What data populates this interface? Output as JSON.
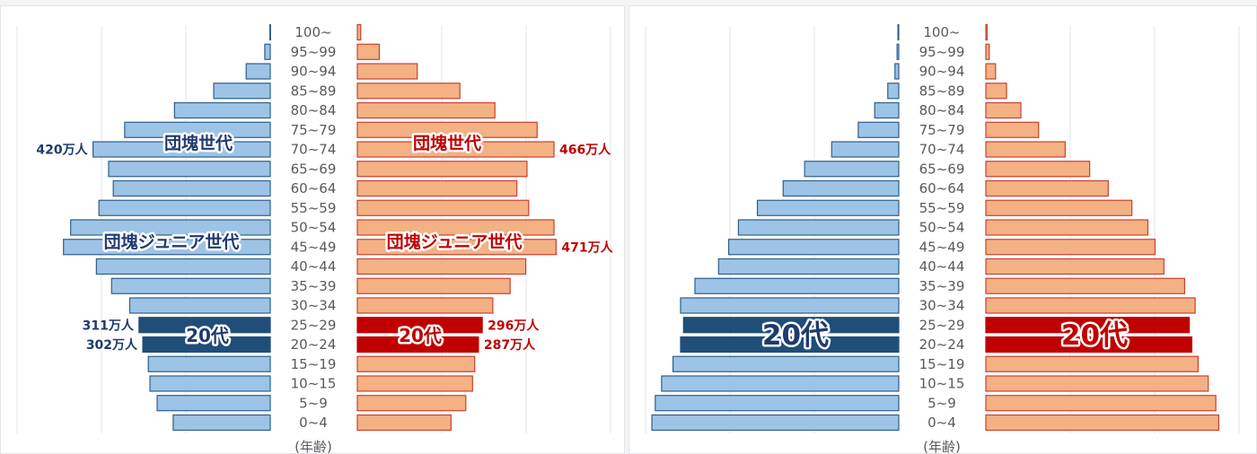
{
  "colors": {
    "male_fill": "#9dc3e6",
    "male_stroke": "#2e5f8a",
    "male_highlight": "#1f4e79",
    "male_text": "#1f3a6e",
    "female_fill": "#f4b183",
    "female_stroke": "#c8412f",
    "female_highlight": "#c00000",
    "female_text": "#c00000",
    "grid": "#e3e6ea",
    "category_text": "#595959"
  },
  "chart_data": [
    {
      "type": "bar",
      "subtype": "population-pyramid",
      "categories": [
        "100~",
        "95~99",
        "90~94",
        "85~89",
        "80~84",
        "75~79",
        "70~74",
        "65~69",
        "60~64",
        "55~59",
        "50~54",
        "45~49",
        "40~44",
        "35~39",
        "30~34",
        "25~29",
        "20~24",
        "15~19",
        "10~15",
        "5~9",
        "0~4"
      ],
      "series": [
        {
          "side": "left",
          "values": [
            1,
            13,
            57,
            134,
            227,
            345,
            420,
            383,
            372,
            406,
            473,
            490,
            412,
            376,
            333,
            311,
            302,
            289,
            285,
            268,
            230
          ]
        },
        {
          "side": "right",
          "values": [
            8,
            52,
            142,
            243,
            326,
            426,
            466,
            402,
            378,
            406,
            466,
            471,
            399,
            362,
            321,
            296,
            287,
            278,
            273,
            257,
            222
          ]
        }
      ],
      "unit": "万人",
      "xlim": [
        0,
        600
      ],
      "grid": true,
      "highlight_categories": [
        "25~29",
        "20~24"
      ],
      "axis_label": "(年齢)",
      "annotations": [
        {
          "text": "団塊世代",
          "side": "left"
        },
        {
          "text": "団塊世代",
          "side": "right"
        },
        {
          "text": "団塊ジュニア世代",
          "side": "left"
        },
        {
          "text": "団塊ジュニア世代",
          "side": "right"
        },
        {
          "text": "20代",
          "side": "left"
        },
        {
          "text": "20代",
          "side": "right"
        }
      ],
      "value_labels": [
        {
          "text": "420万人",
          "side": "left",
          "category": "70~74"
        },
        {
          "text": "466万人",
          "side": "right",
          "category": "70~74"
        },
        {
          "text": "471万人",
          "side": "right",
          "category": "45~49"
        },
        {
          "text": "311万人",
          "side": "left",
          "category": "25~29"
        },
        {
          "text": "302万人",
          "side": "left",
          "category": "20~24"
        },
        {
          "text": "296万人",
          "side": "right",
          "category": "25~29"
        },
        {
          "text": "287万人",
          "side": "right",
          "category": "20~24"
        }
      ]
    },
    {
      "type": "bar",
      "subtype": "population-pyramid",
      "categories": [
        "100~",
        "95~99",
        "90~94",
        "85~89",
        "80~84",
        "75~79",
        "70~74",
        "65~69",
        "60~64",
        "55~59",
        "50~54",
        "45~49",
        "40~44",
        "35~39",
        "30~34",
        "25~29",
        "20~24",
        "15~19",
        "10~15",
        "5~9",
        "0~4"
      ],
      "series": [
        {
          "side": "left",
          "values": [
            2,
            4,
            9,
            26,
            57,
            96,
            159,
            223,
            274,
            335,
            380,
            403,
            427,
            483,
            517,
            510,
            517,
            535,
            562,
            577,
            585
          ]
        },
        {
          "side": "right",
          "values": [
            3,
            8,
            23,
            49,
            83,
            125,
            188,
            246,
            290,
            346,
            384,
            401,
            422,
            471,
            496,
            482,
            488,
            503,
            527,
            545,
            552
          ]
        }
      ],
      "xlim": [
        0,
        600
      ],
      "grid": true,
      "highlight_categories": [
        "25~29",
        "20~24"
      ],
      "axis_label": "(年齢)",
      "annotations": [
        {
          "text": "20代",
          "side": "left"
        },
        {
          "text": "20代",
          "side": "right"
        }
      ],
      "value_labels": []
    }
  ]
}
